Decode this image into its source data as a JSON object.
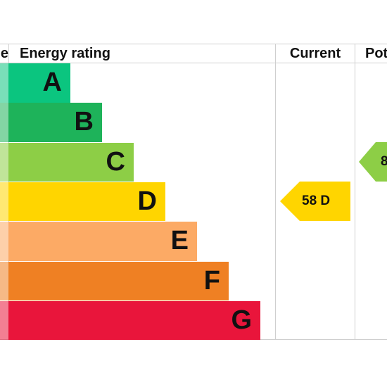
{
  "chart_data": {
    "type": "bar",
    "columns": {
      "left_fragment": "e",
      "rating": "Energy rating",
      "current": "Current",
      "potential_fragment": "Pot"
    },
    "bands": [
      {
        "letter": "A",
        "color": "#0bc57f"
      },
      {
        "letter": "B",
        "color": "#1eb35a"
      },
      {
        "letter": "C",
        "color": "#8dce46"
      },
      {
        "letter": "D",
        "color": "#ffd500"
      },
      {
        "letter": "E",
        "color": "#fcaa65"
      },
      {
        "letter": "F",
        "color": "#ef8023"
      },
      {
        "letter": "G",
        "color": "#e9153b"
      }
    ],
    "current": {
      "text": "58  D",
      "score": 58,
      "band": "D",
      "color": "#ffd500"
    },
    "potential": {
      "text": "8",
      "band": "C",
      "color": "#8dce46"
    }
  }
}
